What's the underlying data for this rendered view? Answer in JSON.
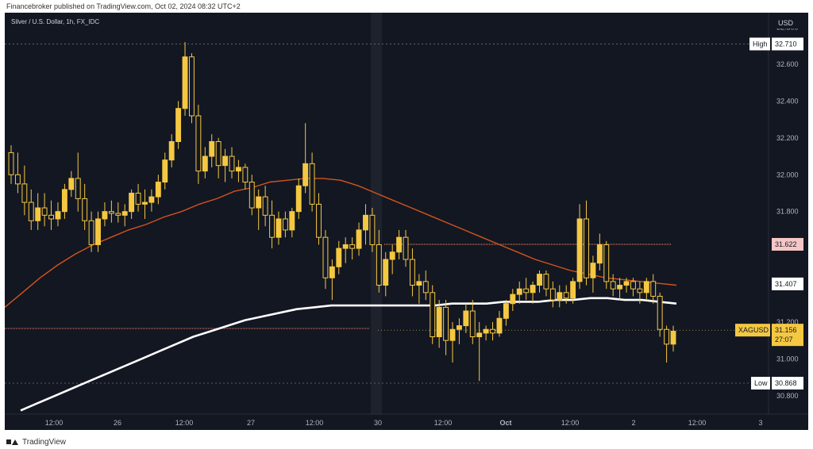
{
  "header": {
    "publisher": "Financebroker published on TradingView.com, Oct 02, 2024 08:32 UTC+2"
  },
  "footer": {
    "brand": "TradingView"
  },
  "colors": {
    "background": "#131722",
    "candle": "#f5c842",
    "ema_fast": "#d2541d",
    "ema_slow": "#ffffff",
    "resistance": "#e07a5f",
    "support": "#e07a5f",
    "label_bg_price": "#f5c842",
    "label_bg_level": "#ffffff",
    "label_bg_resistance": "#f5c6c6",
    "axis_text": "#b2b5be"
  },
  "chart_data": {
    "type": "candlestick",
    "title": "Silver / U.S. Dollar, 1h, FX_IDC",
    "currency": "USD",
    "symbol": "XAGUSD",
    "ylim": [
      30.7,
      32.88
    ],
    "y_ticks": [
      "32.800",
      "32.600",
      "32.400",
      "32.200",
      "32.000",
      "31.800",
      "31.200",
      "31.000",
      "30.800"
    ],
    "x_ticks": [
      "12:00",
      "26",
      "12:00",
      "27",
      "12:00",
      "30",
      "12:00",
      "Oct",
      "12:00",
      "2",
      "12:00",
      "3"
    ],
    "high": {
      "label": "High",
      "value": "32.710"
    },
    "low": {
      "label": "Low",
      "value": "30.868"
    },
    "current_price": {
      "symbol": "XAGUSD",
      "value": "31.156",
      "countdown": "27:07"
    },
    "level_labels": [
      {
        "value": "31.622",
        "kind": "resistance"
      },
      {
        "value": "31.407",
        "kind": "ema"
      }
    ],
    "horizontal_lines": [
      {
        "value": 31.622,
        "style": "resistance"
      },
      {
        "value": 31.165,
        "style": "support"
      }
    ],
    "candles": [
      [
        32.12,
        32.16,
        31.95,
        32.0
      ],
      [
        32.0,
        32.12,
        31.9,
        31.95
      ],
      [
        31.95,
        32.05,
        31.78,
        31.85
      ],
      [
        31.85,
        31.92,
        31.7,
        31.75
      ],
      [
        31.75,
        31.9,
        31.7,
        31.82
      ],
      [
        31.82,
        31.9,
        31.72,
        31.78
      ],
      [
        31.78,
        31.86,
        31.7,
        31.76
      ],
      [
        31.76,
        31.85,
        31.72,
        31.8
      ],
      [
        31.8,
        31.95,
        31.76,
        31.92
      ],
      [
        31.92,
        32.02,
        31.88,
        31.98
      ],
      [
        31.98,
        32.12,
        31.8,
        31.87
      ],
      [
        31.87,
        31.95,
        31.7,
        31.75
      ],
      [
        31.75,
        31.8,
        31.58,
        31.62
      ],
      [
        31.62,
        31.8,
        31.58,
        31.76
      ],
      [
        31.76,
        31.85,
        31.72,
        31.8
      ],
      [
        31.8,
        31.86,
        31.74,
        31.79
      ],
      [
        31.79,
        31.85,
        31.74,
        31.78
      ],
      [
        31.78,
        31.84,
        31.72,
        31.8
      ],
      [
        31.8,
        31.92,
        31.76,
        31.9
      ],
      [
        31.9,
        31.95,
        31.8,
        31.84
      ],
      [
        31.84,
        31.92,
        31.76,
        31.85
      ],
      [
        31.85,
        31.92,
        31.8,
        31.88
      ],
      [
        31.88,
        32.0,
        31.84,
        31.96
      ],
      [
        31.96,
        32.12,
        31.92,
        32.08
      ],
      [
        32.08,
        32.22,
        32.04,
        32.18
      ],
      [
        32.18,
        32.4,
        32.14,
        32.36
      ],
      [
        32.36,
        32.72,
        32.32,
        32.64
      ],
      [
        32.64,
        32.66,
        32.28,
        32.32
      ],
      [
        32.32,
        32.38,
        31.95,
        32.02
      ],
      [
        32.02,
        32.15,
        31.98,
        32.1
      ],
      [
        32.1,
        32.22,
        32.04,
        32.18
      ],
      [
        32.18,
        32.2,
        31.98,
        32.05
      ],
      [
        32.05,
        32.14,
        31.96,
        32.1
      ],
      [
        32.1,
        32.15,
        31.98,
        32.02
      ],
      [
        32.02,
        32.08,
        31.96,
        32.04
      ],
      [
        32.04,
        32.06,
        31.92,
        31.96
      ],
      [
        31.96,
        32.0,
        31.78,
        31.82
      ],
      [
        31.82,
        31.92,
        31.7,
        31.88
      ],
      [
        31.88,
        31.94,
        31.72,
        31.78
      ],
      [
        31.78,
        31.86,
        31.6,
        31.66
      ],
      [
        31.66,
        31.8,
        31.62,
        31.76
      ],
      [
        31.76,
        31.8,
        31.66,
        31.7
      ],
      [
        31.7,
        31.82,
        31.66,
        31.8
      ],
      [
        31.8,
        31.98,
        31.76,
        31.94
      ],
      [
        31.94,
        32.28,
        31.9,
        32.06
      ],
      [
        32.06,
        32.12,
        31.8,
        31.84
      ],
      [
        31.84,
        31.9,
        31.62,
        31.66
      ],
      [
        31.66,
        31.7,
        31.38,
        31.44
      ],
      [
        31.44,
        31.54,
        31.32,
        31.5
      ],
      [
        31.5,
        31.64,
        31.46,
        31.6
      ],
      [
        31.6,
        31.66,
        31.52,
        31.62
      ],
      [
        31.62,
        31.66,
        31.54,
        31.6
      ],
      [
        31.6,
        31.74,
        31.56,
        31.7
      ],
      [
        31.7,
        31.84,
        31.62,
        31.78
      ],
      [
        31.78,
        31.82,
        31.58,
        31.62
      ],
      [
        31.62,
        31.7,
        31.36,
        31.4
      ],
      [
        31.4,
        31.58,
        31.34,
        31.54
      ],
      [
        31.54,
        31.62,
        31.46,
        31.58
      ],
      [
        31.58,
        31.7,
        31.54,
        31.66
      ],
      [
        31.66,
        31.7,
        31.5,
        31.54
      ],
      [
        31.54,
        31.6,
        31.34,
        31.4
      ],
      [
        31.4,
        31.46,
        31.3,
        31.42
      ],
      [
        31.42,
        31.48,
        31.32,
        31.36
      ],
      [
        31.36,
        31.4,
        31.08,
        31.12
      ],
      [
        31.12,
        31.32,
        31.06,
        31.28
      ],
      [
        31.28,
        31.32,
        31.02,
        31.1
      ],
      [
        31.1,
        31.2,
        30.98,
        31.16
      ],
      [
        31.16,
        31.22,
        31.08,
        31.18
      ],
      [
        31.18,
        31.3,
        31.14,
        31.26
      ],
      [
        31.26,
        31.32,
        31.08,
        31.12
      ],
      [
        31.12,
        31.2,
        30.88,
        31.14
      ],
      [
        31.14,
        31.18,
        31.1,
        31.16
      ],
      [
        31.16,
        31.2,
        31.1,
        31.14
      ],
      [
        31.14,
        31.26,
        31.12,
        31.22
      ],
      [
        31.22,
        31.32,
        31.18,
        31.3
      ],
      [
        31.3,
        31.38,
        31.26,
        31.35
      ],
      [
        31.35,
        31.42,
        31.3,
        31.38
      ],
      [
        31.38,
        31.44,
        31.32,
        31.36
      ],
      [
        31.36,
        31.42,
        31.3,
        31.4
      ],
      [
        31.4,
        31.48,
        31.36,
        31.46
      ],
      [
        31.46,
        31.48,
        31.34,
        31.38
      ],
      [
        31.38,
        31.42,
        31.28,
        31.32
      ],
      [
        31.32,
        31.4,
        31.28,
        31.36
      ],
      [
        31.36,
        31.4,
        31.3,
        31.33
      ],
      [
        31.33,
        31.44,
        31.3,
        31.42
      ],
      [
        31.42,
        31.84,
        31.38,
        31.76
      ],
      [
        31.76,
        31.86,
        31.4,
        31.44
      ],
      [
        31.44,
        31.56,
        31.36,
        31.52
      ],
      [
        31.52,
        31.68,
        31.48,
        31.62
      ],
      [
        31.62,
        31.64,
        31.38,
        31.42
      ],
      [
        31.42,
        31.46,
        31.34,
        31.38
      ],
      [
        31.38,
        31.44,
        31.32,
        31.4
      ],
      [
        31.4,
        31.44,
        31.36,
        31.42
      ],
      [
        31.42,
        31.44,
        31.34,
        31.38
      ],
      [
        31.38,
        31.42,
        31.3,
        31.36
      ],
      [
        31.36,
        31.44,
        31.32,
        31.42
      ],
      [
        31.42,
        31.46,
        31.3,
        31.34
      ],
      [
        31.34,
        31.36,
        31.12,
        31.16
      ],
      [
        31.16,
        31.18,
        30.98,
        31.08
      ],
      [
        31.08,
        31.18,
        31.04,
        31.15
      ]
    ],
    "ema_fast_values": [
      31.28,
      31.36,
      31.44,
      31.51,
      31.57,
      31.62,
      31.66,
      31.7,
      31.73,
      31.77,
      31.8,
      31.84,
      31.87,
      31.91,
      31.93,
      31.96,
      31.97,
      31.98,
      31.98,
      31.97,
      31.94,
      31.9,
      31.86,
      31.82,
      31.78,
      31.74,
      31.7,
      31.66,
      31.62,
      31.58,
      31.54,
      31.51,
      31.48,
      31.46,
      31.44,
      31.43,
      31.42,
      31.41,
      31.4
    ],
    "ema_slow_values": [
      30.72,
      30.76,
      30.8,
      30.84,
      30.88,
      30.92,
      30.96,
      31.0,
      31.04,
      31.08,
      31.12,
      31.15,
      31.18,
      31.21,
      31.23,
      31.25,
      31.27,
      31.28,
      31.29,
      31.29,
      31.29,
      31.29,
      31.29,
      31.29,
      31.29,
      31.3,
      31.3,
      31.3,
      31.31,
      31.31,
      31.31,
      31.32,
      31.32,
      31.33,
      31.33,
      31.32,
      31.32,
      31.31,
      31.3
    ]
  }
}
